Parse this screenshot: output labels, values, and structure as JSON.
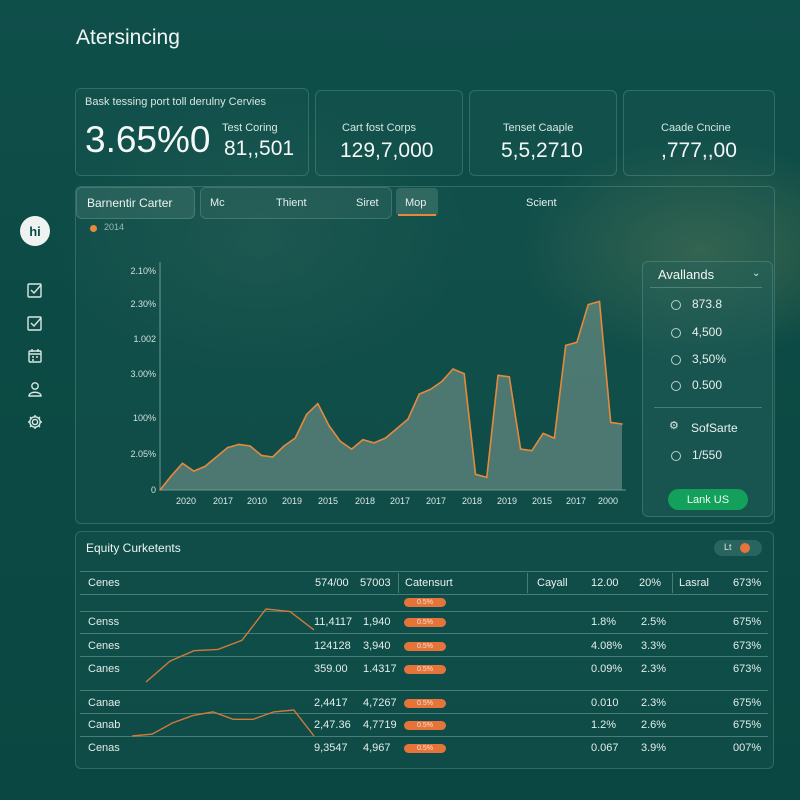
{
  "app": {
    "title": "Atersincing"
  },
  "kpi": {
    "card1": {
      "label": "Bask tessing port toll derulny Cervies",
      "value": "3.65%0",
      "sub_label": "Test Coring",
      "sub_value": "81,,501"
    },
    "card2": {
      "label": "Cart fost Corps",
      "value": "129,7,000"
    },
    "card3": {
      "label": "Tenset Caaple",
      "value": "5,5,2710"
    },
    "card4": {
      "label": "Caade Cncine",
      "value": ",777,,00"
    }
  },
  "sidebar": {
    "avatar": "hi",
    "icons": [
      "checkbox-icon",
      "checkbox-icon",
      "calendar-icon",
      "user-icon",
      "gear-icon"
    ]
  },
  "chart_panel": {
    "title": "Barnentir Carter",
    "tabs": [
      "Mc",
      "Thient",
      "Siret",
      "Mop",
      "Scient"
    ],
    "active_tab": "Mop",
    "legend": "2014",
    "accent": "#e58a3c"
  },
  "chart_data": {
    "type": "area",
    "y_tick_labels": [
      "2.10%",
      "2.30%",
      "1.002",
      "3.00%",
      "100%",
      "2.05%",
      "0"
    ],
    "x_tick_labels": [
      "2020",
      "2017",
      "2010",
      "2019",
      "2015",
      "2018",
      "2017",
      "2017",
      "2018",
      "2019",
      "2015",
      "2017",
      "2000"
    ],
    "ylim": [
      0,
      7
    ],
    "series": [
      {
        "values": [
          0.0,
          0.45,
          0.85,
          0.6,
          0.75,
          1.05,
          1.35,
          1.45,
          1.4,
          1.1,
          1.05,
          1.4,
          1.65,
          2.4,
          2.75,
          2.05,
          1.55,
          1.3,
          1.6,
          1.5,
          1.65,
          1.95,
          2.25,
          3.05,
          3.2,
          3.45,
          3.85,
          3.7,
          0.5,
          0.4,
          3.65,
          3.6,
          1.3,
          1.25,
          1.8,
          1.65,
          4.6,
          4.7,
          5.9,
          6.0,
          2.15,
          2.1
        ],
        "line_color": "#e58a3c",
        "fill_color": "#7d9c91"
      }
    ],
    "grid": false
  },
  "availability": {
    "title": "Avallands",
    "options": [
      "873.8",
      "4,500",
      "3,50%",
      "0.500"
    ],
    "section_title": "SofSarte",
    "section_value": "1/550",
    "link_label": "Lank US"
  },
  "equity": {
    "title": "Equity Curketents",
    "toggle_label": "Lt",
    "headers": [
      "Cenes",
      "574/00",
      "57003",
      "Catensurt",
      "Cayall",
      "12.00",
      "20%",
      "Lasral",
      "673%"
    ],
    "rows": [
      {
        "badge": "0.5%"
      },
      {
        "name": "Censs",
        "a": "11,4117",
        "b": "1,940",
        "badge": "0.5%",
        "c": "1.8%",
        "d": "2.5%",
        "e": "675%"
      },
      {
        "name": "Cenes",
        "a": "124128",
        "b": "3,940",
        "badge": "0.5%",
        "c": "4.08%",
        "d": "3.3%",
        "e": "673%"
      },
      {
        "name": "Canes",
        "a": "359.00",
        "b": "1.4317",
        "badge": "0.5%",
        "c": "0.09%",
        "d": "2.3%",
        "e": "673%"
      },
      {
        "name": "Canae",
        "a": "2,4417",
        "b": "4,7267",
        "badge": "0.5%",
        "c": "0.010",
        "d": "2.3%",
        "e": "675%"
      },
      {
        "name": "Canab",
        "a": "2,47.36",
        "b": "4,7719",
        "badge": "0.5%",
        "c": "1.2%",
        "d": "2.6%",
        "e": "675%"
      },
      {
        "name": "Cenas",
        "a": "9,3547",
        "b": "4,967",
        "badge": "0.5%",
        "c": "0.067",
        "d": "3.9%",
        "e": "007%"
      }
    ],
    "spark1": [
      0,
      0.8,
      1.2,
      1.25,
      1.6,
      2.8,
      2.7,
      2.0
    ],
    "spark2": [
      0,
      0.1,
      0.7,
      1.1,
      1.3,
      0.9,
      0.9,
      1.3,
      1.4,
      0.0
    ]
  }
}
